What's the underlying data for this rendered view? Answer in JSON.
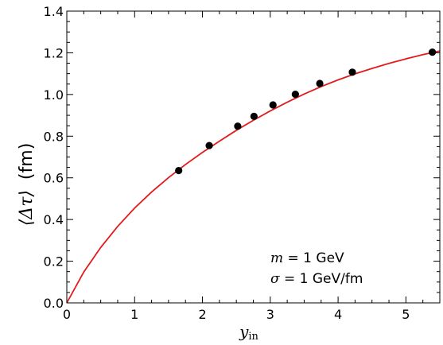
{
  "chart_data": {
    "type": "line",
    "xlabel": {
      "symbol": "y",
      "subscript": "in"
    },
    "ylabel": {
      "symbol": "⟨Δτ⟩",
      "unit": "(fm)"
    },
    "xlim": [
      0,
      5.5
    ],
    "ylim": [
      0.0,
      1.4
    ],
    "xticks": [
      0,
      1,
      2,
      3,
      4,
      5
    ],
    "xtick_labels": [
      "0",
      "1",
      "2",
      "3",
      "4",
      "5"
    ],
    "yticks": [
      0.0,
      0.2,
      0.4,
      0.6,
      0.8,
      1.0,
      1.2,
      1.4
    ],
    "ytick_labels": [
      "0.0",
      "0.2",
      "0.4",
      "0.6",
      "0.8",
      "1.0",
      "1.2",
      "1.4"
    ],
    "grid": false,
    "line_color": "#e31a1c",
    "marker_color": "#000000",
    "series": [
      {
        "kind": "line",
        "x": [
          0.0,
          0.25,
          0.5,
          0.75,
          1.0,
          1.25,
          1.5,
          1.75,
          2.0,
          2.25,
          2.5,
          2.75,
          3.0,
          3.25,
          3.5,
          3.75,
          4.0,
          4.25,
          4.5,
          4.75,
          5.0,
          5.25,
          5.5
        ],
        "y": [
          0.0,
          0.148,
          0.266,
          0.367,
          0.455,
          0.532,
          0.601,
          0.664,
          0.722,
          0.776,
          0.828,
          0.876,
          0.921,
          0.963,
          1.002,
          1.038,
          1.07,
          1.099,
          1.125,
          1.149,
          1.171,
          1.191,
          1.209
        ]
      },
      {
        "kind": "scatter",
        "x": [
          1.65,
          2.1,
          2.52,
          2.76,
          3.04,
          3.37,
          3.73,
          4.21,
          5.39
        ],
        "y": [
          0.635,
          0.755,
          0.848,
          0.895,
          0.95,
          1.001,
          1.053,
          1.107,
          1.203
        ]
      }
    ],
    "annotations": [
      {
        "math": "m",
        "text": " = 1 GeV"
      },
      {
        "math": "σ",
        "text": " = 1 GeV/fm"
      }
    ]
  }
}
